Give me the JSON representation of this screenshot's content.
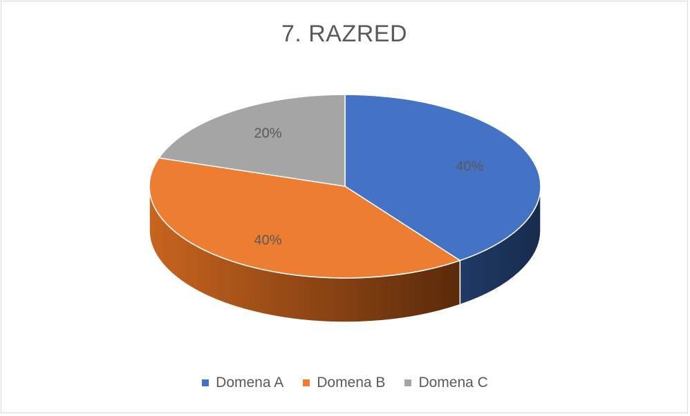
{
  "chart_data": {
    "type": "pie",
    "title": "7. RAZRED",
    "categories": [
      "Domena A",
      "Domena B",
      "Domena C"
    ],
    "values": [
      40,
      40,
      20
    ],
    "labels": [
      "40%",
      "40%",
      "20%"
    ],
    "colors": [
      "#4472C4",
      "#ED7D31",
      "#A5A5A5"
    ],
    "side_colors": [
      "#1F3864",
      "#843C0C",
      "#7F7F7F"
    ],
    "legend_position": "bottom",
    "style": "3d"
  }
}
